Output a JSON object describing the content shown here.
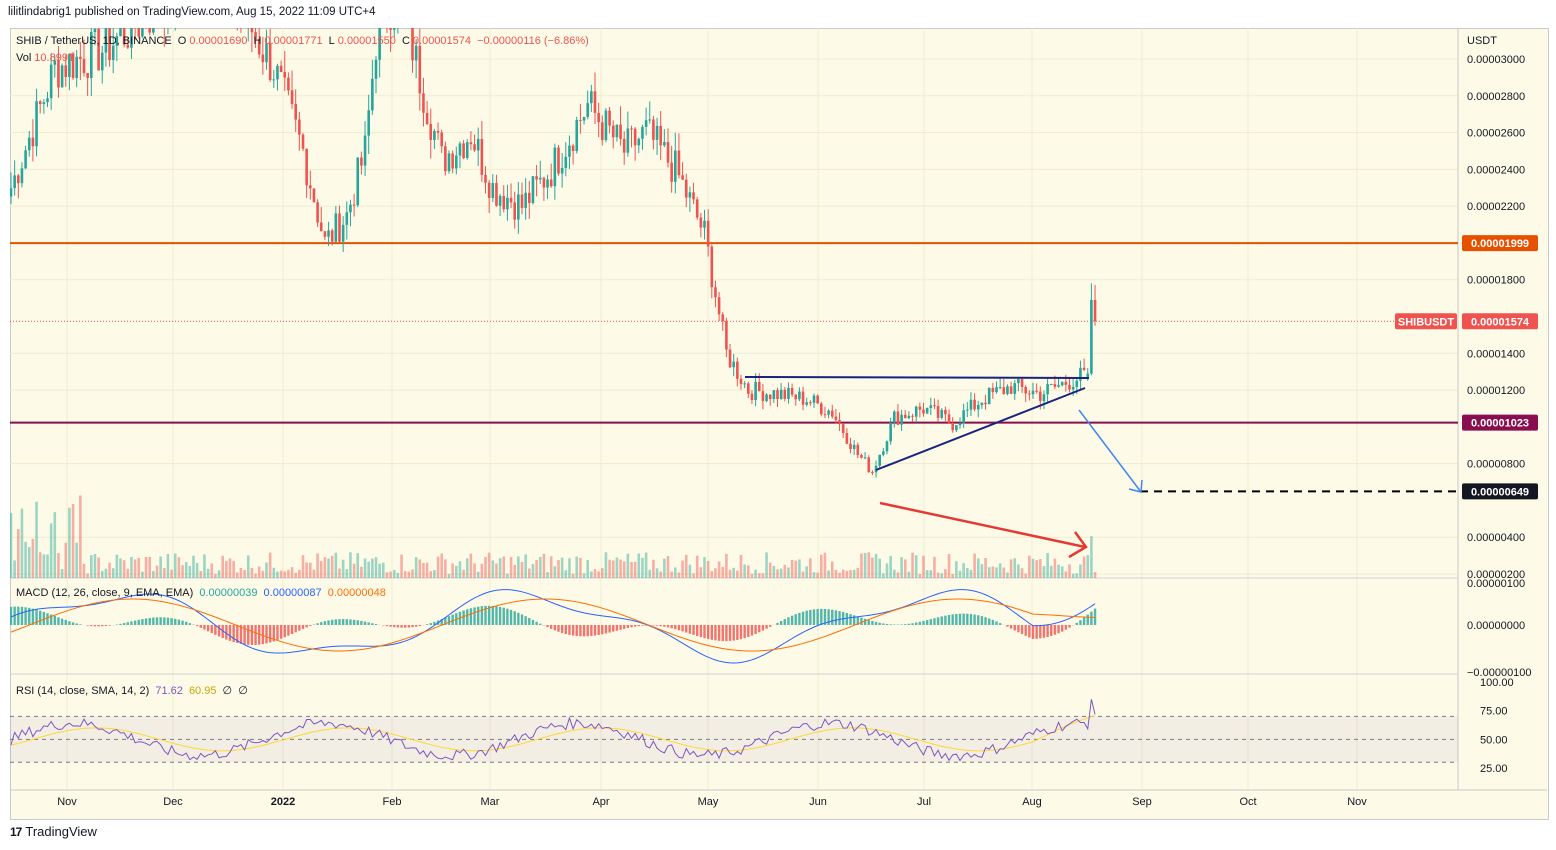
{
  "header": {
    "published_line": "lilitlindabrig1 published on TradingView.com, Aug 15, 2022 11:09 UTC+4"
  },
  "legend": {
    "symbol": "SHIB / TetherUS, 1D, BINANCE",
    "open_label": "O",
    "open_value": "0.00001690",
    "high_label": "H",
    "high_value": "0.00001771",
    "low_label": "L",
    "low_value": "0.00001550",
    "close_label": "C",
    "close_value": "0.00001574",
    "change": "−0.00000116 (−6.86%)",
    "vol_label": "Vol",
    "vol_value": "10.899T"
  },
  "macd_legend": {
    "label": "MACD (12, 26, close, 9, EMA, EMA)",
    "hist": "0.00000039",
    "macd": "0.00000087",
    "signal": "0.00000048"
  },
  "rsi_legend": {
    "label": "RSI (14, close, SMA, 14, 2)",
    "rsi": "71.62",
    "sma": "60.95",
    "a": "∅",
    "b": "∅"
  },
  "footer": {
    "brand": "TradingView",
    "logo": "17"
  },
  "colors": {
    "up": "#26a69a",
    "down": "#ef5350",
    "orange_line": "#e65100",
    "purple_line": "#880e4f",
    "triangle": "#1a237e",
    "blue_arrow": "#4285f4",
    "red_arrow": "#e53935",
    "macd_line": "#2962ff",
    "signal_line": "#ff6d00",
    "rsi_line": "#7e57c2",
    "rsi_sma": "#fdd835",
    "label_bg": "#131722",
    "price_label": "#ef5350"
  },
  "chart_data": {
    "type": "candlestick",
    "currency": "USDT",
    "price_axis": {
      "ticks": [
        "0.00003000",
        "0.00002800",
        "0.00002600",
        "0.00002400",
        "0.00002200",
        "0.00001800",
        "0.00001400",
        "0.00001200",
        "0.00000800",
        "0.00000400",
        "0.00000200"
      ],
      "tick_values": [
        3e-05,
        2.8e-05,
        2.6e-05,
        2.4e-05,
        2.2e-05,
        1.8e-05,
        1.4e-05,
        1.2e-05,
        8e-06,
        4e-06,
        2e-06
      ],
      "ylim": [
        1.6e-06,
        3.22e-05
      ]
    },
    "macd_axis": {
      "ticks": [
        "0.00000100",
        "0.00000000",
        "−0.00000100"
      ]
    },
    "rsi_axis": {
      "ticks": [
        "100.00",
        "75.00",
        "50.00",
        "25.00"
      ]
    },
    "time_axis": [
      "Nov",
      "Dec",
      "2022",
      "Feb",
      "Mar",
      "Apr",
      "May",
      "Jun",
      "Jul",
      "Aug",
      "Sep",
      "Oct",
      "Nov"
    ],
    "price_labels": [
      {
        "text": "0.00001999",
        "value": 1.999e-05,
        "bg": "#e65100"
      },
      {
        "text": "SHIBUSDT",
        "value": 1.574e-05,
        "bg": "#ef5350"
      },
      {
        "text": "0.00001574",
        "value": 1.574e-05,
        "bg": "#ef5350"
      },
      {
        "text": "0.00001023",
        "value": 1.023e-05,
        "bg": "#880e4f"
      },
      {
        "text": "0.00000649",
        "value": 6.49e-06,
        "bg": "#131722"
      }
    ],
    "horizontal_levels": [
      1.999e-05,
      1.023e-05,
      6.49e-06
    ],
    "anchors": [
      {
        "d": 0,
        "p": 2.3e-05
      },
      {
        "d": 12,
        "p": 2.95e-05
      },
      {
        "d": 25,
        "p": 3.05e-05
      },
      {
        "d": 45,
        "p": 3.35e-05
      },
      {
        "d": 55,
        "p": 4e-05
      },
      {
        "d": 62,
        "p": 3.3e-05
      },
      {
        "d": 72,
        "p": 2.95e-05
      },
      {
        "d": 80,
        "p": 2.5e-05
      },
      {
        "d": 86,
        "p": 2e-05
      },
      {
        "d": 92,
        "p": 2.15e-05
      },
      {
        "d": 97,
        "p": 2.5e-05
      },
      {
        "d": 100,
        "p": 3.1e-05
      },
      {
        "d": 106,
        "p": 3.4e-05
      },
      {
        "d": 112,
        "p": 2.9e-05
      },
      {
        "d": 118,
        "p": 2.45e-05
      },
      {
        "d": 126,
        "p": 2.6e-05
      },
      {
        "d": 132,
        "p": 2.3e-05
      },
      {
        "d": 140,
        "p": 2.2e-05
      },
      {
        "d": 148,
        "p": 2.4e-05
      },
      {
        "d": 158,
        "p": 2.75e-05
      },
      {
        "d": 168,
        "p": 2.5e-05
      },
      {
        "d": 174,
        "p": 2.6e-05
      },
      {
        "d": 182,
        "p": 2.4e-05
      },
      {
        "d": 190,
        "p": 2.05e-05
      },
      {
        "d": 196,
        "p": 1.4e-05
      },
      {
        "d": 202,
        "p": 1.2e-05
      },
      {
        "d": 210,
        "p": 1.18e-05
      },
      {
        "d": 218,
        "p": 1.15e-05
      },
      {
        "d": 225,
        "p": 1.08e-05
      },
      {
        "d": 232,
        "p": 8.5e-06
      },
      {
        "d": 236,
        "p": 7.6e-06
      },
      {
        "d": 242,
        "p": 1.05e-05
      },
      {
        "d": 250,
        "p": 1.1e-05
      },
      {
        "d": 258,
        "p": 1.02e-05
      },
      {
        "d": 266,
        "p": 1.15e-05
      },
      {
        "d": 274,
        "p": 1.22e-05
      },
      {
        "d": 282,
        "p": 1.18e-05
      },
      {
        "d": 290,
        "p": 1.25e-05
      },
      {
        "d": 294,
        "p": 1.28e-05
      }
    ],
    "last_days": [
      {
        "o": 1.27e-05,
        "h": 1.32e-05,
        "l": 1.25e-05,
        "c": 1.29e-05
      },
      {
        "o": 1.29e-05,
        "h": 1.78e-05,
        "l": 1.28e-05,
        "c": 1.69e-05
      },
      {
        "o": 1.69e-05,
        "h": 1.771e-05,
        "l": 1.55e-05,
        "c": 1.574e-05
      }
    ],
    "rsi_last": 71.62,
    "rsi_sma_last": 60.95
  }
}
